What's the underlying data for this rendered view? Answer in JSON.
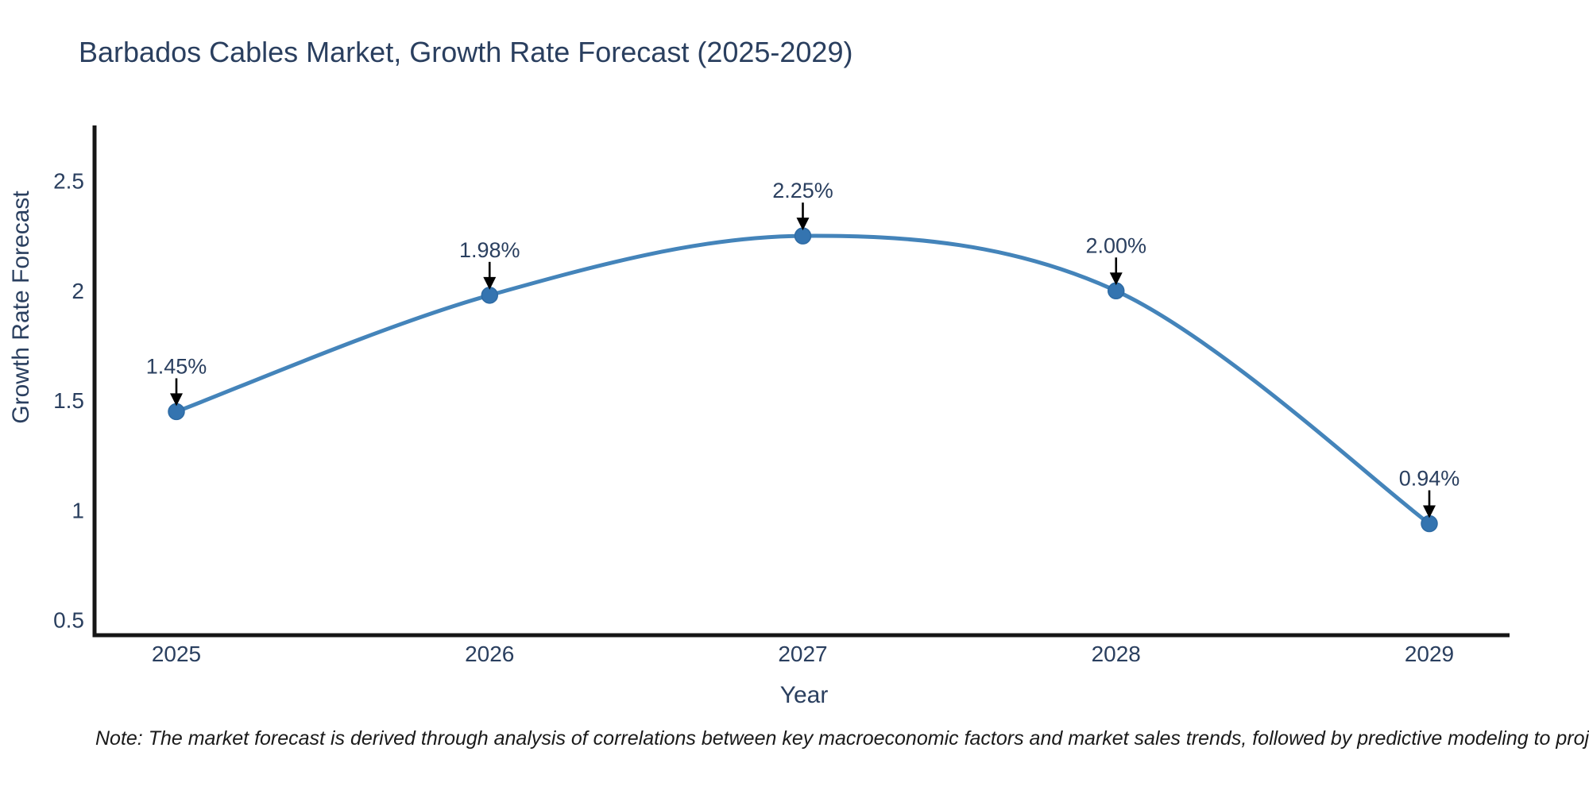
{
  "title": "Barbados Cables Market, Growth Rate Forecast (2025-2029)",
  "note": "Note: The market forecast is derived through analysis of correlations between key macroeconomic factors and market sales trends, followed by predictive modeling to project future sales",
  "chart_data": {
    "type": "line",
    "title": "Barbados Cables Market, Growth Rate Forecast (2025-2029)",
    "xlabel": "Year",
    "ylabel": "Growth Rate Forecast",
    "categories": [
      "2025",
      "2026",
      "2027",
      "2028",
      "2029"
    ],
    "series": [
      {
        "name": "Growth Rate Forecast",
        "values": [
          1.45,
          1.98,
          2.25,
          2.0,
          0.94
        ],
        "point_labels": [
          "1.45%",
          "1.98%",
          "2.25%",
          "2.00%",
          "0.94%"
        ]
      }
    ],
    "y_ticks": [
      "0.5",
      "1",
      "1.5",
      "2",
      "2.5"
    ],
    "y_tick_values": [
      0.5,
      1,
      1.5,
      2,
      2.5
    ],
    "ylim": [
      0.42,
      2.77
    ],
    "line_shape": "spline",
    "grid": false,
    "legend_position": "none",
    "annotations_have_arrows": true,
    "colors": {
      "line": "#4484ba",
      "marker_fill": "#3474b0",
      "marker_edge": "#2e6ba4",
      "axis_line": "#161616",
      "tick_text": "#2a3f5f",
      "annotation_text": "#2a3f5f",
      "arrow": "#000000",
      "title_text": "#2a3f5f",
      "note_text": "#1a1a1a"
    }
  }
}
